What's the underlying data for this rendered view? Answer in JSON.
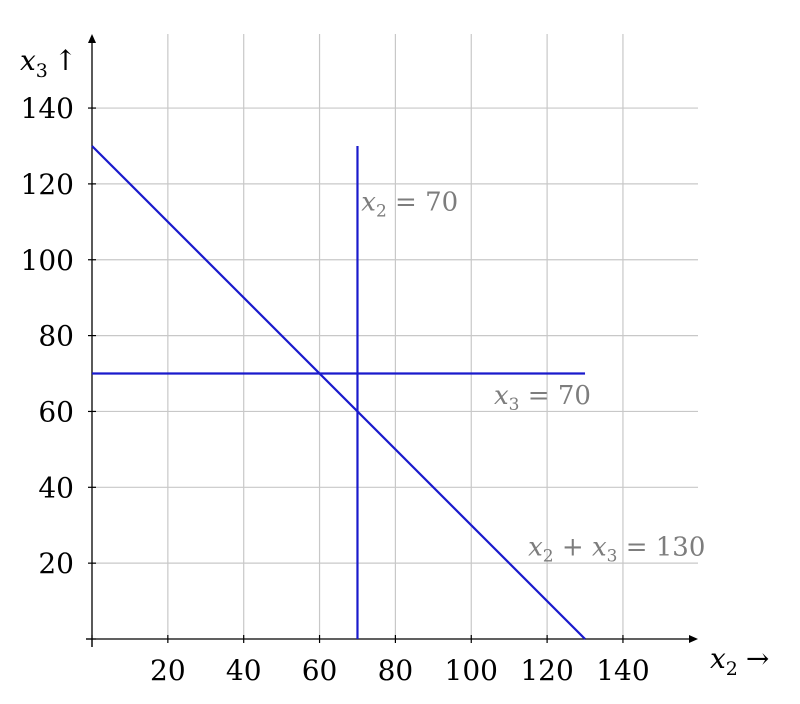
{
  "chart_data": {
    "type": "line",
    "title": "",
    "xlabel": {
      "var": "x",
      "sub": "2",
      "arrow": "→"
    },
    "ylabel": {
      "var": "x",
      "sub": "3",
      "arrow": "↑"
    },
    "xlim": [
      0,
      160
    ],
    "ylim": [
      0,
      160
    ],
    "xticks": [
      20,
      40,
      60,
      80,
      100,
      120,
      140
    ],
    "yticks": [
      20,
      40,
      60,
      80,
      100,
      120,
      140
    ],
    "grid": true,
    "series": [
      {
        "x": [
          0,
          130
        ],
        "y": [
          130,
          0
        ],
        "color": "#1a1acc"
      },
      {
        "x": [
          70,
          70
        ],
        "y": [
          0,
          130
        ],
        "color": "#1a1acc"
      },
      {
        "x": [
          0,
          130
        ],
        "y": [
          70,
          70
        ],
        "color": "#1a1acc"
      }
    ],
    "annotations": [
      {
        "parts": [
          [
            "var",
            "x"
          ],
          [
            "sub",
            "2"
          ],
          [
            "text",
            " = 70"
          ]
        ],
        "x": 71,
        "y": 113
      },
      {
        "parts": [
          [
            "var",
            "x"
          ],
          [
            "sub",
            "3"
          ],
          [
            "text",
            " = 70"
          ]
        ],
        "x": 106,
        "y": 62
      },
      {
        "parts": [
          [
            "var",
            "x"
          ],
          [
            "sub",
            "2"
          ],
          [
            "text",
            " + "
          ],
          [
            "var",
            "x"
          ],
          [
            "sub",
            "3"
          ],
          [
            "text",
            " = 130"
          ]
        ],
        "x": 115,
        "y": 22
      }
    ]
  }
}
